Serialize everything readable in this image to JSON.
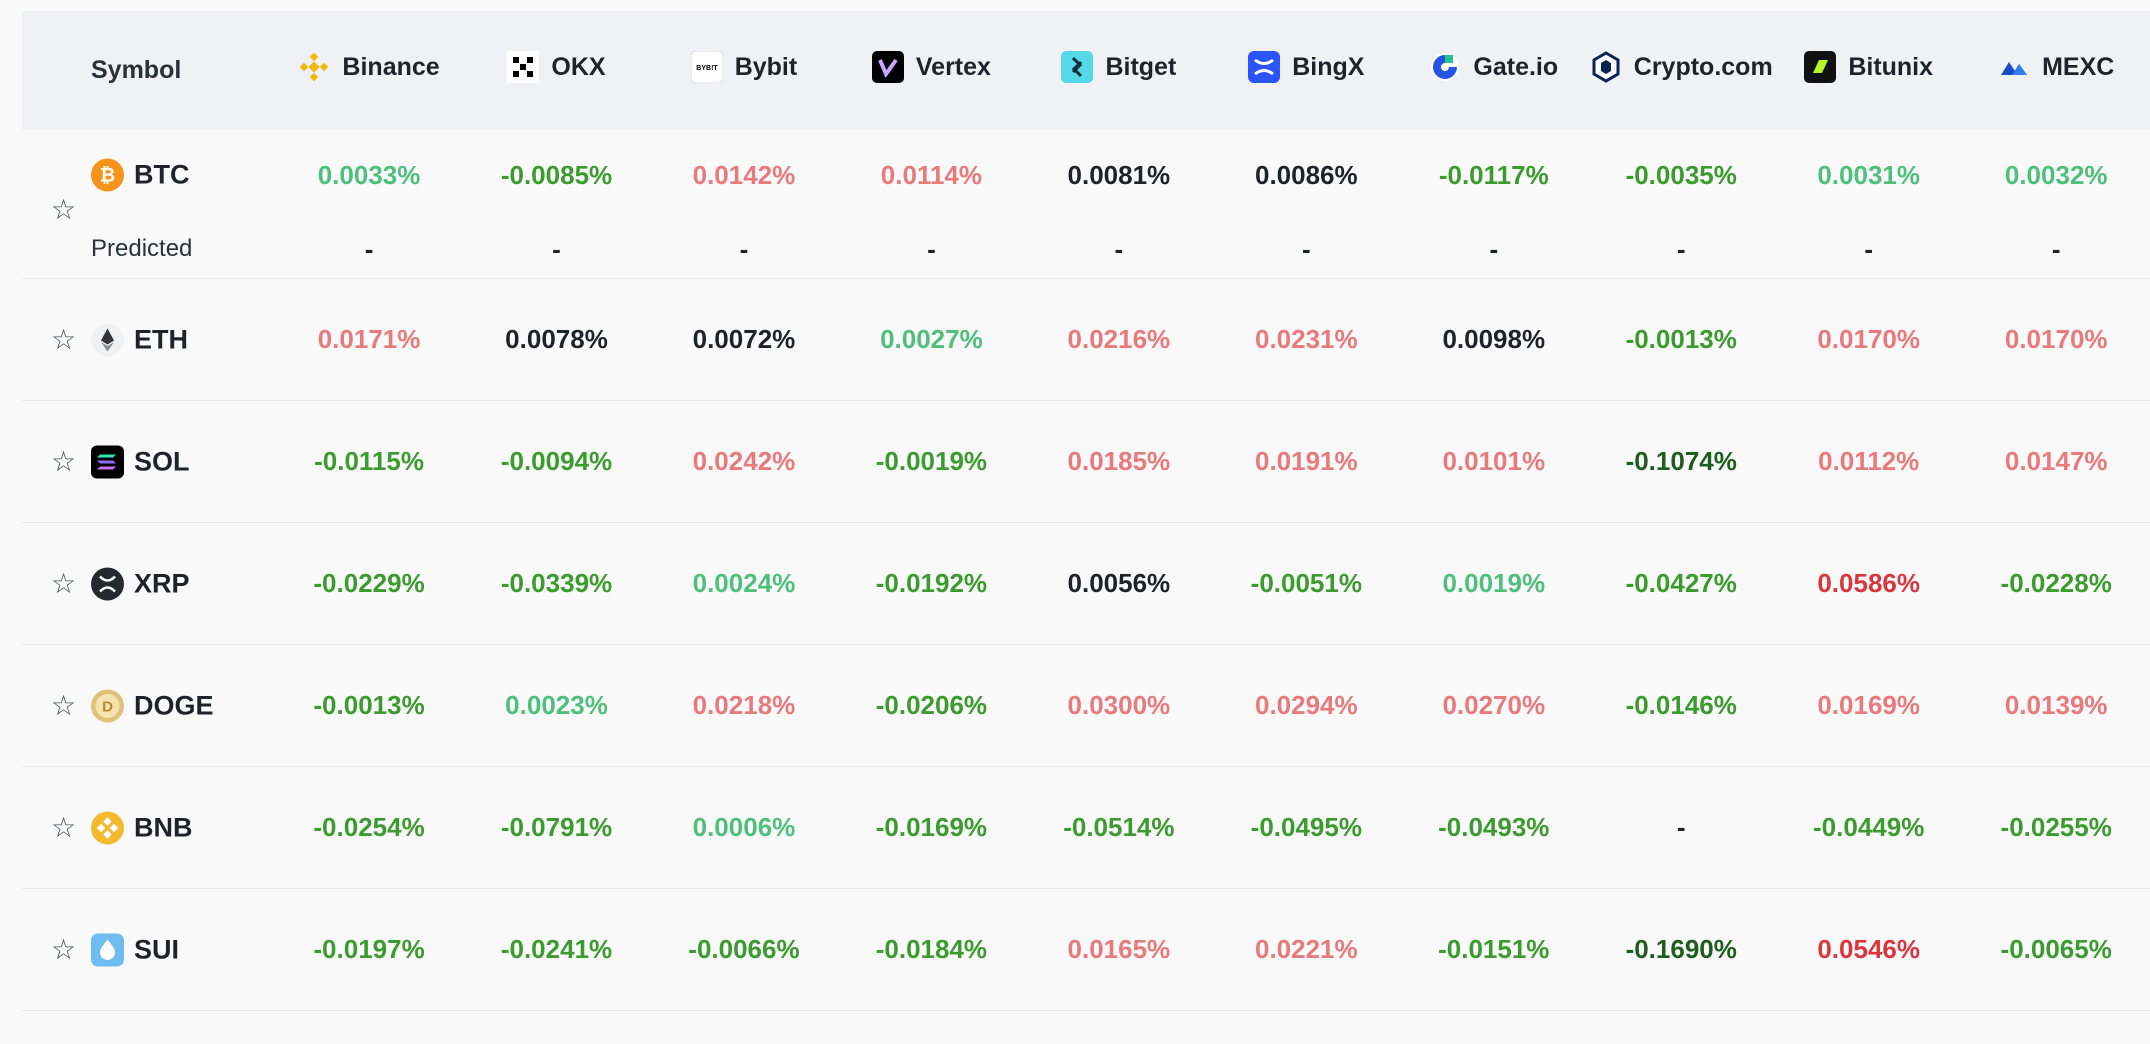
{
  "header": {
    "symbol_label": "Symbol",
    "exchanges": [
      {
        "name": "Binance",
        "icon": "binance-icon"
      },
      {
        "name": "OKX",
        "icon": "okx-icon"
      },
      {
        "name": "Bybit",
        "icon": "bybit-icon"
      },
      {
        "name": "Vertex",
        "icon": "vertex-icon"
      },
      {
        "name": "Bitget",
        "icon": "bitget-icon"
      },
      {
        "name": "BingX",
        "icon": "bingx-icon"
      },
      {
        "name": "Gate.io",
        "icon": "gateio-icon"
      },
      {
        "name": "Crypto.com",
        "icon": "cryptocom-icon"
      },
      {
        "name": "Bitunix",
        "icon": "bitunix-icon"
      },
      {
        "name": "MEXC",
        "icon": "mexc-icon"
      }
    ]
  },
  "predicted_label": "Predicted",
  "predicted_values": [
    "-",
    "-",
    "-",
    "-",
    "-",
    "-",
    "-",
    "-",
    "-",
    "-"
  ],
  "rows": [
    {
      "symbol": "BTC",
      "icon": "btc-icon",
      "rates": [
        {
          "v": "0.0033%",
          "t": "lneg"
        },
        {
          "v": "-0.0085%",
          "t": "neg"
        },
        {
          "v": "0.0142%",
          "t": "pos"
        },
        {
          "v": "0.0114%",
          "t": "pos"
        },
        {
          "v": "0.0081%",
          "t": "neu"
        },
        {
          "v": "0.0086%",
          "t": "neu"
        },
        {
          "v": "-0.0117%",
          "t": "neg"
        },
        {
          "v": "-0.0035%",
          "t": "neg"
        },
        {
          "v": "0.0031%",
          "t": "lneg"
        },
        {
          "v": "0.0032%",
          "t": "lneg"
        }
      ]
    },
    {
      "symbol": "ETH",
      "icon": "eth-icon",
      "rates": [
        {
          "v": "0.0171%",
          "t": "pos"
        },
        {
          "v": "0.0078%",
          "t": "neu"
        },
        {
          "v": "0.0072%",
          "t": "neu"
        },
        {
          "v": "0.0027%",
          "t": "lneg"
        },
        {
          "v": "0.0216%",
          "t": "pos"
        },
        {
          "v": "0.0231%",
          "t": "pos"
        },
        {
          "v": "0.0098%",
          "t": "neu"
        },
        {
          "v": "-0.0013%",
          "t": "neg"
        },
        {
          "v": "0.0170%",
          "t": "pos"
        },
        {
          "v": "0.0170%",
          "t": "pos"
        }
      ]
    },
    {
      "symbol": "SOL",
      "icon": "sol-icon",
      "rates": [
        {
          "v": "-0.0115%",
          "t": "neg"
        },
        {
          "v": "-0.0094%",
          "t": "neg"
        },
        {
          "v": "0.0242%",
          "t": "pos"
        },
        {
          "v": "-0.0019%",
          "t": "neg"
        },
        {
          "v": "0.0185%",
          "t": "pos"
        },
        {
          "v": "0.0191%",
          "t": "pos"
        },
        {
          "v": "0.0101%",
          "t": "pos"
        },
        {
          "v": "-0.1074%",
          "t": "dark-neg"
        },
        {
          "v": "0.0112%",
          "t": "pos"
        },
        {
          "v": "0.0147%",
          "t": "pos"
        }
      ]
    },
    {
      "symbol": "XRP",
      "icon": "xrp-icon",
      "rates": [
        {
          "v": "-0.0229%",
          "t": "neg"
        },
        {
          "v": "-0.0339%",
          "t": "neg"
        },
        {
          "v": "0.0024%",
          "t": "lneg"
        },
        {
          "v": "-0.0192%",
          "t": "neg"
        },
        {
          "v": "0.0056%",
          "t": "neu"
        },
        {
          "v": "-0.0051%",
          "t": "neg"
        },
        {
          "v": "0.0019%",
          "t": "lneg"
        },
        {
          "v": "-0.0427%",
          "t": "neg"
        },
        {
          "v": "0.0586%",
          "t": "strong-pos"
        },
        {
          "v": "-0.0228%",
          "t": "neg"
        }
      ]
    },
    {
      "symbol": "DOGE",
      "icon": "doge-icon",
      "rates": [
        {
          "v": "-0.0013%",
          "t": "neg"
        },
        {
          "v": "0.0023%",
          "t": "lneg"
        },
        {
          "v": "0.0218%",
          "t": "pos"
        },
        {
          "v": "-0.0206%",
          "t": "neg"
        },
        {
          "v": "0.0300%",
          "t": "pos"
        },
        {
          "v": "0.0294%",
          "t": "pos"
        },
        {
          "v": "0.0270%",
          "t": "pos"
        },
        {
          "v": "-0.0146%",
          "t": "neg"
        },
        {
          "v": "0.0169%",
          "t": "pos"
        },
        {
          "v": "0.0139%",
          "t": "pos"
        }
      ]
    },
    {
      "symbol": "BNB",
      "icon": "bnb-icon",
      "rates": [
        {
          "v": "-0.0254%",
          "t": "neg"
        },
        {
          "v": "-0.0791%",
          "t": "neg"
        },
        {
          "v": "0.0006%",
          "t": "lneg"
        },
        {
          "v": "-0.0169%",
          "t": "neg"
        },
        {
          "v": "-0.0514%",
          "t": "neg"
        },
        {
          "v": "-0.0495%",
          "t": "neg"
        },
        {
          "v": "-0.0493%",
          "t": "neg"
        },
        {
          "v": "-",
          "t": "dash"
        },
        {
          "v": "-0.0449%",
          "t": "neg"
        },
        {
          "v": "-0.0255%",
          "t": "neg"
        }
      ]
    },
    {
      "symbol": "SUI",
      "icon": "sui-icon",
      "rates": [
        {
          "v": "-0.0197%",
          "t": "neg"
        },
        {
          "v": "-0.0241%",
          "t": "neg"
        },
        {
          "v": "-0.0066%",
          "t": "neg"
        },
        {
          "v": "-0.0184%",
          "t": "neg"
        },
        {
          "v": "0.0165%",
          "t": "pos"
        },
        {
          "v": "0.0221%",
          "t": "pos"
        },
        {
          "v": "-0.0151%",
          "t": "neg"
        },
        {
          "v": "-0.1690%",
          "t": "dark-neg"
        },
        {
          "v": "0.0546%",
          "t": "strong-pos"
        },
        {
          "v": "-0.0065%",
          "t": "neg"
        }
      ]
    }
  ],
  "colors": {
    "positive": "#e8797c",
    "negative": "#3b9b2e",
    "light_negative": "#4fbf7c",
    "strong_positive": "#d9363e",
    "dark_negative": "#1f5d1f",
    "header_bg": "#eff1f5"
  }
}
